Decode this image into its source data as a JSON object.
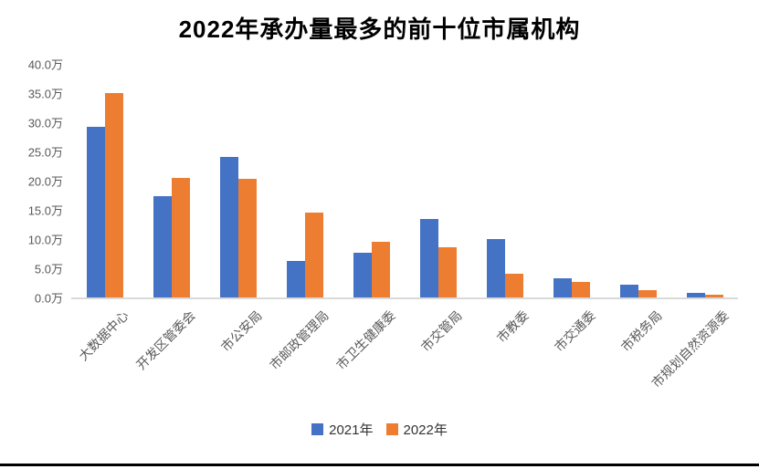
{
  "title": "2022年承办量最多的前十位市属机构",
  "colors": {
    "series_2021": "#4472C4",
    "series_2022": "#ED7D31",
    "axis_line": "#D9D9D9",
    "tick_text": "#595959",
    "title_text": "#000000",
    "bottom_rule": "#000000"
  },
  "chart_data": {
    "type": "bar",
    "title": "2022年承办量最多的前十位市属机构",
    "categories": [
      "大数据中心",
      "开发区管委会",
      "市公安局",
      "市邮政管理局",
      "市卫生健康委",
      "市交管局",
      "市教委",
      "市交通委",
      "市税务局",
      "市规划自然资源委"
    ],
    "series": [
      {
        "name": "2021年",
        "color": "#4472C4",
        "values": [
          29.3,
          17.3,
          24.0,
          6.3,
          7.7,
          13.5,
          10.0,
          3.3,
          2.2,
          0.8
        ]
      },
      {
        "name": "2022年",
        "color": "#ED7D31",
        "values": [
          35.0,
          20.5,
          20.3,
          14.6,
          9.5,
          8.6,
          4.1,
          2.6,
          1.3,
          0.5
        ]
      }
    ],
    "unit": "万",
    "xlabel": "",
    "ylabel": "",
    "ylim": [
      0,
      40
    ],
    "y_tick_step": 5,
    "y_ticks": [
      "40.0万",
      "35.0万",
      "30.0万",
      "25.0万",
      "20.0万",
      "15.0万",
      "10.0万",
      "5.0万",
      "0.0万"
    ],
    "grid": false,
    "legend_position": "bottom"
  }
}
